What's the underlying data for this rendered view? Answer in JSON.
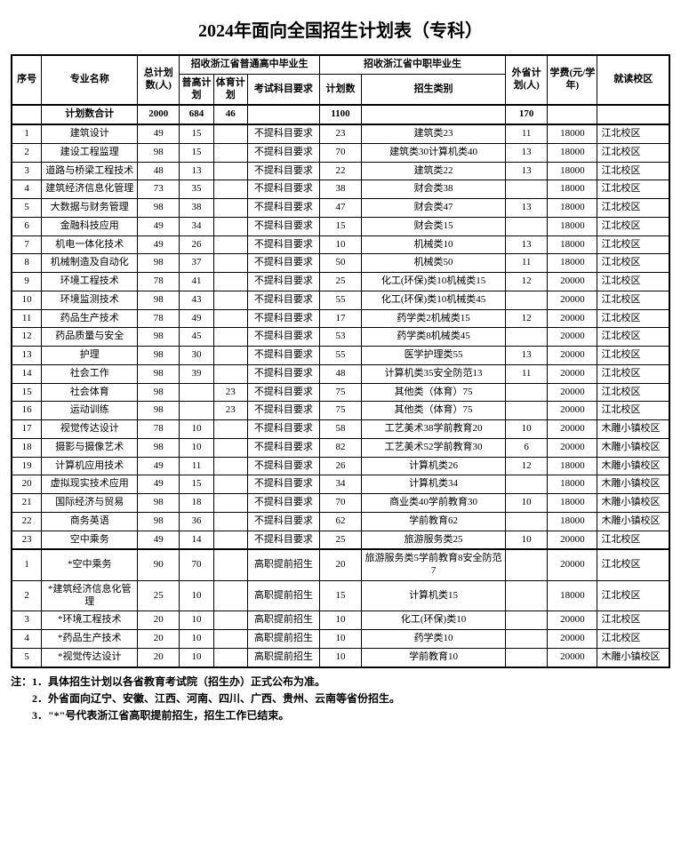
{
  "title": "2024年面向全国招生计划表（专科）",
  "headers": {
    "seq": "序号",
    "major": "专业名称",
    "total": "总计划数(人)",
    "zj_gaozhong_group": "招收浙江省普通高中毕业生",
    "zj_gz_putong": "普高计划",
    "zj_gz_tiyu": "体育计划",
    "zj_gz_exam": "考试科目要求",
    "zj_zhongzhi_group": "招收浙江省中职毕业生",
    "zj_zz_count": "计划数",
    "zj_zz_type": "招生类别",
    "other_prov": "外省计划(人)",
    "tuition": "学费(元/学年)",
    "campus": "就读校区",
    "total_row_label": "计划数合计"
  },
  "totals": {
    "total": "2000",
    "putong": "684",
    "tiyu": "46",
    "zz_count": "1100",
    "other": "170"
  },
  "rows1": [
    {
      "n": "1",
      "major": "建筑设计",
      "total": "49",
      "pg": "15",
      "ty": "",
      "exam": "不提科目要求",
      "zzc": "23",
      "zzt": "建筑类23",
      "oth": "11",
      "fee": "18000",
      "camp": "江北校区"
    },
    {
      "n": "2",
      "major": "建设工程监理",
      "total": "98",
      "pg": "15",
      "ty": "",
      "exam": "不提科目要求",
      "zzc": "70",
      "zzt": "建筑类30计算机类40",
      "oth": "13",
      "fee": "18000",
      "camp": "江北校区"
    },
    {
      "n": "3",
      "major": "道路与桥梁工程技术",
      "total": "48",
      "pg": "13",
      "ty": "",
      "exam": "不提科目要求",
      "zzc": "22",
      "zzt": "建筑类22",
      "oth": "13",
      "fee": "18000",
      "camp": "江北校区"
    },
    {
      "n": "4",
      "major": "建筑经济信息化管理",
      "total": "73",
      "pg": "35",
      "ty": "",
      "exam": "不提科目要求",
      "zzc": "38",
      "zzt": "财会类38",
      "oth": "",
      "fee": "18000",
      "camp": "江北校区"
    },
    {
      "n": "5",
      "major": "大数据与财务管理",
      "total": "98",
      "pg": "38",
      "ty": "",
      "exam": "不提科目要求",
      "zzc": "47",
      "zzt": "财会类47",
      "oth": "13",
      "fee": "18000",
      "camp": "江北校区"
    },
    {
      "n": "6",
      "major": "金融科技应用",
      "total": "49",
      "pg": "34",
      "ty": "",
      "exam": "不提科目要求",
      "zzc": "15",
      "zzt": "财会类15",
      "oth": "",
      "fee": "18000",
      "camp": "江北校区"
    },
    {
      "n": "7",
      "major": "机电一体化技术",
      "total": "49",
      "pg": "26",
      "ty": "",
      "exam": "不提科目要求",
      "zzc": "10",
      "zzt": "机械类10",
      "oth": "13",
      "fee": "18000",
      "camp": "江北校区"
    },
    {
      "n": "8",
      "major": "机械制造及自动化",
      "total": "98",
      "pg": "37",
      "ty": "",
      "exam": "不提科目要求",
      "zzc": "50",
      "zzt": "机械类50",
      "oth": "11",
      "fee": "18000",
      "camp": "江北校区"
    },
    {
      "n": "9",
      "major": "环境工程技术",
      "total": "78",
      "pg": "41",
      "ty": "",
      "exam": "不提科目要求",
      "zzc": "25",
      "zzt": "化工(环保)类10机械类15",
      "oth": "12",
      "fee": "20000",
      "camp": "江北校区"
    },
    {
      "n": "10",
      "major": "环境监测技术",
      "total": "98",
      "pg": "43",
      "ty": "",
      "exam": "不提科目要求",
      "zzc": "55",
      "zzt": "化工(环保)类10机械类45",
      "oth": "",
      "fee": "20000",
      "camp": "江北校区"
    },
    {
      "n": "11",
      "major": "药品生产技术",
      "total": "78",
      "pg": "49",
      "ty": "",
      "exam": "不提科目要求",
      "zzc": "17",
      "zzt": "药学类2机械类15",
      "oth": "12",
      "fee": "20000",
      "camp": "江北校区"
    },
    {
      "n": "12",
      "major": "药品质量与安全",
      "total": "98",
      "pg": "45",
      "ty": "",
      "exam": "不提科目要求",
      "zzc": "53",
      "zzt": "药学类8机械类45",
      "oth": "",
      "fee": "20000",
      "camp": "江北校区"
    },
    {
      "n": "13",
      "major": "护理",
      "total": "98",
      "pg": "30",
      "ty": "",
      "exam": "不提科目要求",
      "zzc": "55",
      "zzt": "医学护理类55",
      "oth": "13",
      "fee": "20000",
      "camp": "江北校区"
    },
    {
      "n": "14",
      "major": "社会工作",
      "total": "98",
      "pg": "39",
      "ty": "",
      "exam": "不提科目要求",
      "zzc": "48",
      "zzt": "计算机类35安全防范13",
      "oth": "11",
      "fee": "20000",
      "camp": "江北校区"
    },
    {
      "n": "15",
      "major": "社会体育",
      "total": "98",
      "pg": "",
      "ty": "23",
      "exam": "不提科目要求",
      "zzc": "75",
      "zzt": "其他类（体育）75",
      "oth": "",
      "fee": "20000",
      "camp": "江北校区"
    },
    {
      "n": "16",
      "major": "运动训练",
      "total": "98",
      "pg": "",
      "ty": "23",
      "exam": "不提科目要求",
      "zzc": "75",
      "zzt": "其他类（体育）75",
      "oth": "",
      "fee": "20000",
      "camp": "江北校区"
    },
    {
      "n": "17",
      "major": "视觉传达设计",
      "total": "78",
      "pg": "10",
      "ty": "",
      "exam": "不提科目要求",
      "zzc": "58",
      "zzt": "工艺美术38学前教育20",
      "oth": "10",
      "fee": "20000",
      "camp": "木雕小镇校区"
    },
    {
      "n": "18",
      "major": "摄影与摄像艺术",
      "total": "98",
      "pg": "10",
      "ty": "",
      "exam": "不提科目要求",
      "zzc": "82",
      "zzt": "工艺美术52学前教育30",
      "oth": "6",
      "fee": "20000",
      "camp": "木雕小镇校区"
    },
    {
      "n": "19",
      "major": "计算机应用技术",
      "total": "49",
      "pg": "11",
      "ty": "",
      "exam": "不提科目要求",
      "zzc": "26",
      "zzt": "计算机类26",
      "oth": "12",
      "fee": "18000",
      "camp": "木雕小镇校区"
    },
    {
      "n": "20",
      "major": "虚拟现实技术应用",
      "total": "49",
      "pg": "15",
      "ty": "",
      "exam": "不提科目要求",
      "zzc": "34",
      "zzt": "计算机类34",
      "oth": "",
      "fee": "18000",
      "camp": "木雕小镇校区"
    },
    {
      "n": "21",
      "major": "国际经济与贸易",
      "total": "98",
      "pg": "18",
      "ty": "",
      "exam": "不提科目要求",
      "zzc": "70",
      "zzt": "商业类40学前教育30",
      "oth": "10",
      "fee": "18000",
      "camp": "木雕小镇校区"
    },
    {
      "n": "22",
      "major": "商务英语",
      "total": "98",
      "pg": "36",
      "ty": "",
      "exam": "不提科目要求",
      "zzc": "62",
      "zzt": "学前教育62",
      "oth": "",
      "fee": "18000",
      "camp": "木雕小镇校区"
    },
    {
      "n": "23",
      "major": "空中乘务",
      "total": "49",
      "pg": "14",
      "ty": "",
      "exam": "不提科目要求",
      "zzc": "25",
      "zzt": "旅游服务类25",
      "oth": "10",
      "fee": "20000",
      "camp": "江北校区"
    }
  ],
  "rows2": [
    {
      "n": "1",
      "major": "*空中乘务",
      "total": "90",
      "pg": "70",
      "ty": "",
      "exam": "高职提前招生",
      "zzc": "20",
      "zzt": "旅游服务类5学前教育8安全防范7",
      "oth": "",
      "fee": "20000",
      "camp": "江北校区"
    },
    {
      "n": "2",
      "major": "*建筑经济信息化管理",
      "total": "25",
      "pg": "10",
      "ty": "",
      "exam": "高职提前招生",
      "zzc": "15",
      "zzt": "计算机类15",
      "oth": "",
      "fee": "18000",
      "camp": "江北校区"
    },
    {
      "n": "3",
      "major": "*环境工程技术",
      "total": "20",
      "pg": "10",
      "ty": "",
      "exam": "高职提前招生",
      "zzc": "10",
      "zzt": "化工(环保)类10",
      "oth": "",
      "fee": "20000",
      "camp": "江北校区"
    },
    {
      "n": "4",
      "major": "*药品生产技术",
      "total": "20",
      "pg": "10",
      "ty": "",
      "exam": "高职提前招生",
      "zzc": "10",
      "zzt": "药学类10",
      "oth": "",
      "fee": "20000",
      "camp": "江北校区"
    },
    {
      "n": "5",
      "major": "*视觉传达设计",
      "total": "20",
      "pg": "10",
      "ty": "",
      "exam": "高职提前招生",
      "zzc": "10",
      "zzt": "学前教育10",
      "oth": "",
      "fee": "20000",
      "camp": "木雕小镇校区"
    }
  ],
  "notes": [
    "注：1．具体招生计划以各省教育考试院（招生办）正式公布为准。",
    "　　2．外省面向辽宁、安徽、江西、河南、四川、广西、贵州、云南等省份招生。",
    "　　3．\"*\"号代表浙江省高职提前招生，招生工作已结束。"
  ],
  "colwidths": [
    "30",
    "96",
    "42",
    "34",
    "34",
    "72",
    "42",
    "144",
    "42",
    "50",
    "72"
  ]
}
